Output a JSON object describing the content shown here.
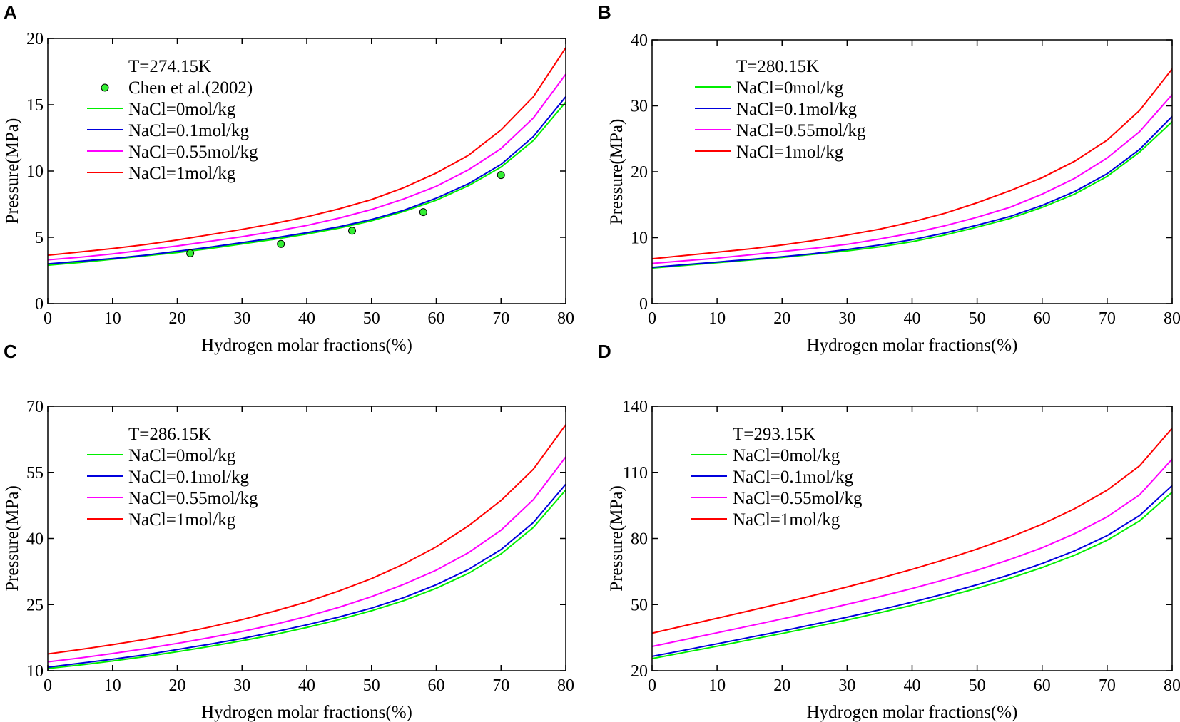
{
  "chart_data": [
    {
      "panel": "A",
      "type": "line",
      "title": "T=274.15K",
      "xlabel": "Hydrogen molar fractions(%)",
      "ylabel": "Pressure(MPa)",
      "xlim": [
        0,
        80
      ],
      "ylim": [
        0,
        20
      ],
      "xticks": [
        0,
        10,
        20,
        30,
        40,
        50,
        60,
        70,
        80
      ],
      "yticks": [
        0,
        5,
        10,
        15,
        20
      ],
      "x": [
        0,
        5,
        10,
        15,
        20,
        25,
        30,
        35,
        40,
        45,
        50,
        55,
        60,
        65,
        70,
        75,
        80
      ],
      "series": [
        {
          "name": "NaCl=0mol/kg",
          "color": "#00ee00",
          "values": [
            2.9,
            3.1,
            3.35,
            3.6,
            3.85,
            4.15,
            4.5,
            4.85,
            5.25,
            5.7,
            6.25,
            6.95,
            7.8,
            8.9,
            10.3,
            12.3,
            15.2
          ]
        },
        {
          "name": "NaCl=0.1mol/kg",
          "color": "#0000dd",
          "values": [
            3.0,
            3.2,
            3.4,
            3.65,
            3.95,
            4.25,
            4.6,
            4.95,
            5.35,
            5.8,
            6.35,
            7.05,
            7.95,
            9.05,
            10.5,
            12.6,
            15.6
          ]
        },
        {
          "name": "NaCl=0.55mol/kg",
          "color": "#ff00ff",
          "values": [
            3.3,
            3.5,
            3.75,
            4.05,
            4.35,
            4.7,
            5.05,
            5.45,
            5.9,
            6.45,
            7.1,
            7.9,
            8.85,
            10.1,
            11.7,
            14.0,
            17.3
          ]
        },
        {
          "name": "NaCl=1mol/kg",
          "color": "#ff0000",
          "values": [
            3.65,
            3.9,
            4.15,
            4.45,
            4.8,
            5.2,
            5.6,
            6.05,
            6.55,
            7.15,
            7.85,
            8.75,
            9.85,
            11.2,
            13.1,
            15.6,
            19.3
          ]
        }
      ],
      "points": {
        "name": "Chen et al.(2002)",
        "color": "#33ee33",
        "x": [
          22,
          36,
          47,
          58,
          70
        ],
        "y": [
          3.8,
          4.5,
          5.5,
          6.9,
          9.7
        ]
      }
    },
    {
      "panel": "B",
      "type": "line",
      "title": "T=280.15K",
      "xlabel": "Hydrogen molar fractions(%)",
      "ylabel": "Pressure(MPa)",
      "xlim": [
        0,
        80
      ],
      "ylim": [
        0,
        40
      ],
      "xticks": [
        0,
        10,
        20,
        30,
        40,
        50,
        60,
        70,
        80
      ],
      "yticks": [
        0,
        10,
        20,
        30,
        40
      ],
      "x": [
        0,
        5,
        10,
        15,
        20,
        25,
        30,
        35,
        40,
        45,
        50,
        55,
        60,
        65,
        70,
        75,
        80
      ],
      "series": [
        {
          "name": "NaCl=0mol/kg",
          "color": "#00ee00",
          "values": [
            5.4,
            5.8,
            6.2,
            6.6,
            7.0,
            7.5,
            8.0,
            8.6,
            9.4,
            10.4,
            11.6,
            12.9,
            14.6,
            16.6,
            19.3,
            23.0,
            27.6
          ]
        },
        {
          "name": "NaCl=0.1mol/kg",
          "color": "#0000dd",
          "values": [
            5.5,
            5.9,
            6.3,
            6.7,
            7.1,
            7.6,
            8.2,
            8.9,
            9.7,
            10.7,
            11.9,
            13.2,
            14.9,
            17.0,
            19.7,
            23.4,
            28.4
          ]
        },
        {
          "name": "NaCl=0.55mol/kg",
          "color": "#ff00ff",
          "values": [
            6.1,
            6.5,
            6.9,
            7.4,
            7.9,
            8.4,
            9.0,
            9.8,
            10.7,
            11.8,
            13.1,
            14.6,
            16.6,
            19.0,
            22.1,
            26.1,
            31.7
          ]
        },
        {
          "name": "NaCl=1mol/kg",
          "color": "#ff0000",
          "values": [
            6.8,
            7.3,
            7.8,
            8.3,
            8.9,
            9.6,
            10.4,
            11.3,
            12.4,
            13.7,
            15.3,
            17.1,
            19.1,
            21.6,
            24.8,
            29.3,
            35.6
          ]
        }
      ]
    },
    {
      "panel": "C",
      "type": "line",
      "title": "T=286.15K",
      "xlabel": "Hydrogen molar fractions(%)",
      "ylabel": "Pressure(MPa)",
      "xlim": [
        0,
        80
      ],
      "ylim": [
        10,
        70
      ],
      "xticks": [
        0,
        10,
        20,
        30,
        40,
        50,
        60,
        70,
        80
      ],
      "yticks": [
        10,
        25,
        40,
        55,
        70
      ],
      "x": [
        0,
        5,
        10,
        15,
        20,
        25,
        30,
        35,
        40,
        45,
        50,
        55,
        60,
        65,
        70,
        75,
        80
      ],
      "series": [
        {
          "name": "NaCl=0mol/kg",
          "color": "#00ee00",
          "values": [
            10.5,
            11.3,
            12.2,
            13.2,
            14.3,
            15.5,
            16.8,
            18.2,
            19.8,
            21.6,
            23.6,
            25.9,
            28.7,
            32.1,
            36.5,
            42.5,
            51.0
          ]
        },
        {
          "name": "NaCl=0.1mol/kg",
          "color": "#0000dd",
          "values": [
            10.8,
            11.7,
            12.6,
            13.6,
            14.8,
            16.0,
            17.3,
            18.8,
            20.4,
            22.2,
            24.2,
            26.6,
            29.5,
            33.0,
            37.5,
            43.6,
            52.3
          ]
        },
        {
          "name": "NaCl=0.55mol/kg",
          "color": "#ff00ff",
          "values": [
            12.0,
            12.9,
            13.9,
            15.0,
            16.2,
            17.5,
            18.9,
            20.5,
            22.3,
            24.4,
            26.8,
            29.6,
            32.8,
            36.8,
            41.9,
            48.8,
            58.5
          ]
        },
        {
          "name": "NaCl=1mol/kg",
          "color": "#ff0000",
          "values": [
            13.8,
            14.8,
            15.9,
            17.1,
            18.4,
            19.9,
            21.6,
            23.5,
            25.6,
            28.1,
            30.9,
            34.2,
            38.1,
            42.9,
            48.6,
            55.7,
            65.8
          ]
        }
      ]
    },
    {
      "panel": "D",
      "type": "line",
      "title": "T=293.15K",
      "xlabel": "Hydrogen molar fractions(%)",
      "ylabel": "Pressure(MPa)",
      "xlim": [
        0,
        80
      ],
      "ylim": [
        20,
        140
      ],
      "xticks": [
        0,
        10,
        20,
        30,
        40,
        50,
        60,
        70,
        80
      ],
      "yticks": [
        20,
        50,
        80,
        110,
        140
      ],
      "x": [
        0,
        5,
        10,
        15,
        20,
        25,
        30,
        35,
        40,
        45,
        50,
        55,
        60,
        65,
        70,
        75,
        80
      ],
      "series": [
        {
          "name": "NaCl=0mol/kg",
          "color": "#00ee00",
          "values": [
            25.5,
            28.3,
            31.1,
            34.0,
            36.9,
            39.9,
            43.0,
            46.3,
            49.7,
            53.4,
            57.4,
            61.9,
            66.8,
            72.4,
            79.2,
            88.0,
            101.0
          ]
        },
        {
          "name": "NaCl=0.1mol/kg",
          "color": "#0000dd",
          "values": [
            26.5,
            29.3,
            32.2,
            35.1,
            38.0,
            41.1,
            44.3,
            47.6,
            51.1,
            54.9,
            59.0,
            63.5,
            68.6,
            74.4,
            81.3,
            90.4,
            104.0
          ]
        },
        {
          "name": "NaCl=0.55mol/kg",
          "color": "#ff00ff",
          "values": [
            31.0,
            34.1,
            37.2,
            40.3,
            43.5,
            46.7,
            50.1,
            53.6,
            57.3,
            61.3,
            65.6,
            70.4,
            75.8,
            82.2,
            89.8,
            99.8,
            116.0
          ]
        },
        {
          "name": "NaCl=1mol/kg",
          "color": "#ff0000",
          "values": [
            37.0,
            40.4,
            43.8,
            47.2,
            50.7,
            54.3,
            58.0,
            61.9,
            66.0,
            70.4,
            75.2,
            80.5,
            86.5,
            93.5,
            101.9,
            113.0,
            130.0
          ]
        }
      ]
    }
  ]
}
